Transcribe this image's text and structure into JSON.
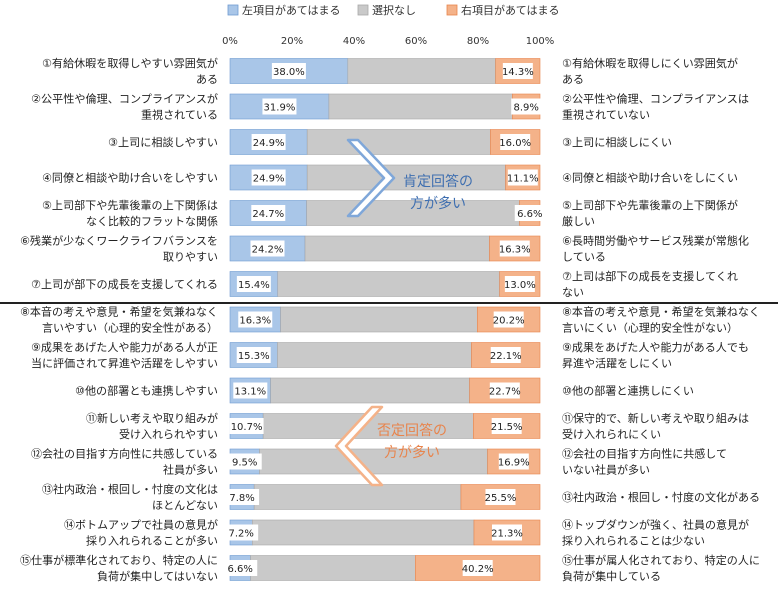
{
  "chart_data": {
    "type": "bar",
    "stacked": true,
    "orientation": "horizontal",
    "xlim": [
      0,
      100
    ],
    "x_ticks": [
      "0%",
      "20%",
      "40%",
      "60%",
      "80%",
      "100%"
    ],
    "legend": {
      "placement": "top",
      "items": [
        {
          "name": "左項目があてはまる",
          "color": "#a9c6e8"
        },
        {
          "name": "選択なし",
          "color": "#c9c9c9"
        },
        {
          "name": "右項目があてはまる",
          "color": "#f4b289"
        }
      ]
    },
    "colors": {
      "left": "#a9c6e8",
      "middle": "#c9c9c9",
      "right": "#f4b289",
      "left_border": "#6f9bd1",
      "right_border": "#e8844c",
      "label_bg": "#ffffff"
    },
    "rows": [
      {
        "left_label": [
          "①有給休暇を取得しやすい雰囲気が",
          "ある"
        ],
        "right_label": [
          "①有給休暇を取得しにくい雰囲気が",
          "ある"
        ],
        "left": 38.0,
        "right": 14.3,
        "left_text": "38.0%",
        "right_text": "14.3%"
      },
      {
        "left_label": [
          "②公平性や倫理、コンプライアンスが",
          "重視されている"
        ],
        "right_label": [
          "②公平性や倫理、コンプライアンスは",
          "重視されていない"
        ],
        "left": 31.9,
        "right": 8.9,
        "left_text": "31.9%",
        "right_text": "8.9%"
      },
      {
        "left_label": [
          "③上司に相談しやすい"
        ],
        "right_label": [
          "③上司に相談しにくい"
        ],
        "left": 24.9,
        "right": 16.0,
        "left_text": "24.9%",
        "right_text": "16.0%"
      },
      {
        "left_label": [
          "④同僚と相談や助け合いをしやすい"
        ],
        "right_label": [
          "④同僚と相談や助け合いをしにくい"
        ],
        "left": 24.9,
        "right": 11.1,
        "left_text": "24.9%",
        "right_text": "11.1%"
      },
      {
        "left_label": [
          "⑤上司部下や先輩後輩の上下関係は",
          "なく比較的フラットな関係"
        ],
        "right_label": [
          "⑤上司部下や先輩後輩の上下関係が",
          "厳しい"
        ],
        "left": 24.7,
        "right": 6.6,
        "left_text": "24.7%",
        "right_text": "6.6%"
      },
      {
        "left_label": [
          "⑥残業が少なくワークライフバランスを",
          "取りやすい"
        ],
        "right_label": [
          "⑥長時間労働やサービス残業が常態化",
          "している"
        ],
        "left": 24.2,
        "right": 16.3,
        "left_text": "24.2%",
        "right_text": "16.3%"
      },
      {
        "left_label": [
          "⑦上司が部下の成長を支援してくれる"
        ],
        "right_label": [
          "⑦上司は部下の成長を支援してくれ",
          "ない"
        ],
        "left": 15.4,
        "right": 13.0,
        "left_text": "15.4%",
        "right_text": "13.0%"
      },
      {
        "left_label": [
          "⑧本音の考えや意見・希望を気兼ねなく",
          "言いやすい（心理的安全性がある）"
        ],
        "right_label": [
          "⑧本音の考えや意見・希望を気兼ねなく",
          "言いにくい（心理的安全性がない）"
        ],
        "left": 16.3,
        "right": 20.2,
        "left_text": "16.3%",
        "right_text": "20.2%"
      },
      {
        "left_label": [
          "⑨成果をあげた人や能力がある人が正",
          "当に評価されて昇進や活躍をしやすい"
        ],
        "right_label": [
          "⑨成果をあげた人や能力がある人でも",
          "昇進や活躍をしにくい"
        ],
        "left": 15.3,
        "right": 22.1,
        "left_text": "15.3%",
        "right_text": "22.1%"
      },
      {
        "left_label": [
          "⑩他の部署とも連携しやすい"
        ],
        "right_label": [
          "⑩他の部署と連携しにくい"
        ],
        "left": 13.1,
        "right": 22.7,
        "left_text": "13.1%",
        "right_text": "22.7%"
      },
      {
        "left_label": [
          "⑪新しい考えや取り組みが",
          "受け入れられやすい"
        ],
        "right_label": [
          "⑪保守的で、新しい考えや取り組みは",
          "受け入れられにくい"
        ],
        "left": 10.7,
        "right": 21.5,
        "left_text": "10.7%",
        "right_text": "21.5%"
      },
      {
        "left_label": [
          "⑫会社の目指す方向性に共感している",
          "社員が多い"
        ],
        "right_label": [
          "⑫会社の目指す方向性に共感して",
          "いない社員が多い"
        ],
        "left": 9.5,
        "right": 16.9,
        "left_text": "9.5%",
        "right_text": "16.9%"
      },
      {
        "left_label": [
          "⑬社内政治・根回し・忖度の文化は",
          "ほとんどない"
        ],
        "right_label": [
          "⑬社内政治・根回し・忖度の文化がある"
        ],
        "left": 7.8,
        "right": 25.5,
        "left_text": "7.8%",
        "right_text": "25.5%"
      },
      {
        "left_label": [
          "⑭ボトムアップで社員の意見が",
          "採り入れられることが多い"
        ],
        "right_label": [
          "⑭トップダウンが強く、社員の意見が",
          "採り入れられることは少ない"
        ],
        "left": 7.2,
        "right": 21.3,
        "left_text": "7.2%",
        "right_text": "21.3%"
      },
      {
        "left_label": [
          "⑮仕事が標準化されており、特定の人に",
          "負荷が集中してはいない"
        ],
        "right_label": [
          "⑮仕事が属人化されており、特定の人に",
          "負荷が集中している"
        ],
        "left": 6.6,
        "right": 40.2,
        "left_text": "6.6%",
        "right_text": "40.2%"
      }
    ],
    "annotations": [
      {
        "text": [
          "肯定回答の",
          "方が多い"
        ],
        "color": "#3f6fb0",
        "arrow_color": "#7fa7d9",
        "direction": "right"
      },
      {
        "text": [
          "否定回答の",
          "方が多い"
        ],
        "color": "#e8844c",
        "arrow_color": "#f4b289",
        "direction": "left"
      }
    ]
  }
}
